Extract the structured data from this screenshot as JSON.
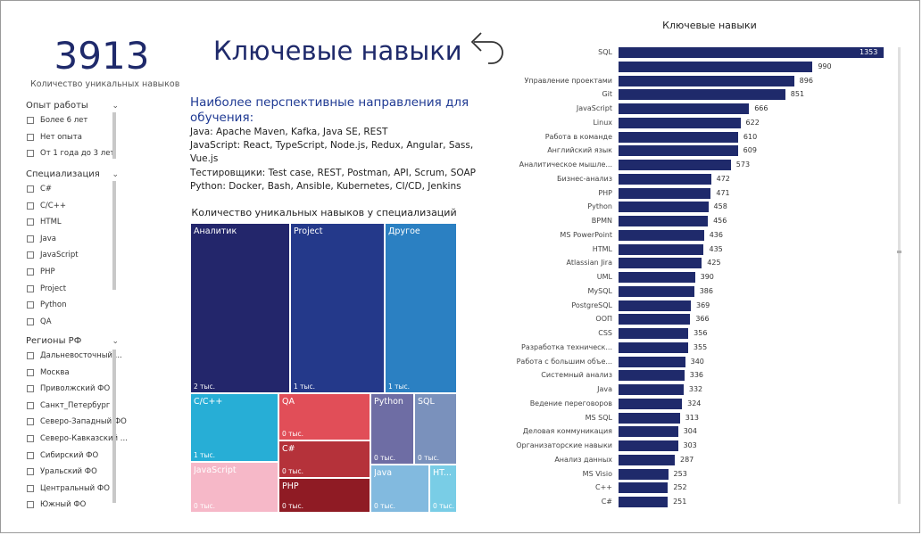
{
  "kpi": {
    "value": "3913",
    "label": "Количество уникальных навыков"
  },
  "title": "Ключевые навыки",
  "perspective": {
    "title": "Наиболее перспективные направления для обучения:",
    "lines": [
      "Java: Apache Maven, Kafka, Java SE, REST",
      "JavaScript: React, TypeScript, Node.js, Redux, Angular, Sass, Vue.js",
      "Тестировщики: Test case, REST, Postman, API, Scrum, SOAP",
      "Python: Docker, Bash, Ansible, Kubernetes, CI/CD, Jenkins"
    ]
  },
  "filters": {
    "experience": {
      "title": "Опыт работы",
      "items": [
        "Более 6 лет",
        "Нет опыта",
        "От 1 года до 3 лет"
      ]
    },
    "specialization": {
      "title": "Специализация",
      "items": [
        "C#",
        "C/C++",
        "HTML",
        "Java",
        "JavaScript",
        "PHP",
        "Project",
        "Python",
        "QA"
      ]
    },
    "regions": {
      "title": "Регионы РФ",
      "items": [
        "Дальневосточный ...",
        "Москва",
        "Приволжский ФО",
        "Санкт_Петербург",
        "Северо-Западный ФО",
        "Северо-Кавказский ...",
        "Сибирский ФО",
        "Уральский ФО",
        "Центральный ФО",
        "Южный ФО"
      ]
    }
  },
  "colors": {
    "bar": "#1f2a6b",
    "accent": "#1f2a6b"
  },
  "chart_data": [
    {
      "type": "treemap",
      "title": "Количество уникальных навыков у специализаций",
      "tiles": [
        {
          "name": "Аналитик",
          "value_label": "2 тыс.",
          "color": "#23266b"
        },
        {
          "name": "Project",
          "value_label": "1 тыс.",
          "color": "#24398a"
        },
        {
          "name": "Другое",
          "value_label": "1 тыс.",
          "color": "#2b80c2"
        },
        {
          "name": "C/C++",
          "value_label": "1 тыс.",
          "color": "#27aed6"
        },
        {
          "name": "QA",
          "value_label": "0 тыс.",
          "color": "#e14e58"
        },
        {
          "name": "C#",
          "value_label": "0 тыс.",
          "color": "#b5323a"
        },
        {
          "name": "PHP",
          "value_label": "0 тыс.",
          "color": "#8f1b24"
        },
        {
          "name": "JavaScript",
          "value_label": "0 тыс.",
          "color": "#f6b8c8"
        },
        {
          "name": "Python",
          "value_label": "0 тыс.",
          "color": "#6e6da4"
        },
        {
          "name": "SQL",
          "value_label": "0 тыс.",
          "color": "#7a91bc"
        },
        {
          "name": "Java",
          "value_label": "0 тыс.",
          "color": "#82badf"
        },
        {
          "name": "HT...",
          "value_label": "0 тыс.",
          "color": "#79cde6"
        }
      ]
    },
    {
      "type": "bar",
      "orientation": "horizontal",
      "title": "Ключевые навыки",
      "categories": [
        "SQL",
        "",
        "Управление проектами",
        "Git",
        "JavaScript",
        "Linux",
        "Работа в команде",
        "Английский язык",
        "Аналитическое мышле...",
        "Бизнес-анализ",
        "PHP",
        "Python",
        "BPMN",
        "MS PowerPoint",
        "HTML",
        "Atlassian Jira",
        "UML",
        "MySQL",
        "PostgreSQL",
        "ООП",
        "CSS",
        "Разработка техническ...",
        "Работа с большим объе...",
        "Системный анализ",
        "Java",
        "Ведение переговоров",
        "MS SQL",
        "Деловая коммуникация",
        "Организаторские навыки",
        "Анализ данных",
        "MS Visio",
        "C++",
        "C#"
      ],
      "values": [
        1353,
        990,
        896,
        851,
        666,
        622,
        610,
        609,
        573,
        472,
        471,
        458,
        456,
        436,
        435,
        425,
        390,
        386,
        369,
        366,
        356,
        355,
        340,
        336,
        332,
        324,
        313,
        304,
        303,
        287,
        253,
        252,
        251
      ],
      "value_labels": [
        "1353",
        "990",
        "896",
        "851",
        "666",
        "622",
        "610",
        "609",
        "573",
        "472",
        "471",
        "458",
        "456",
        "436",
        "435",
        "425",
        "390",
        "386",
        "369",
        "366",
        "356",
        "355",
        "340",
        "336",
        "332",
        "324",
        "313",
        "304",
        "303",
        "287",
        "253",
        "252",
        "251"
      ],
      "xlim": [
        0,
        1353
      ]
    }
  ]
}
